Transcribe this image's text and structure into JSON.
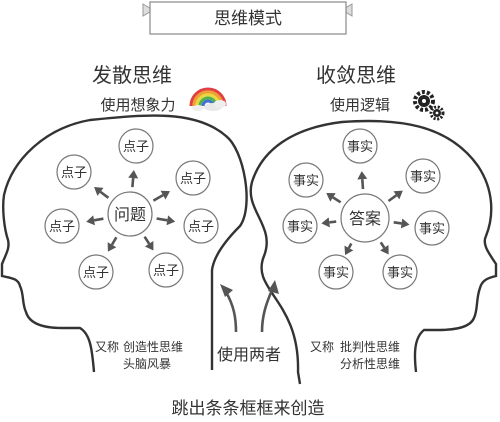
{
  "title": "思维模式",
  "footer": "跳出条条框框来创造",
  "center_label": "使用两者",
  "divergent": {
    "heading": "发散思维",
    "subheading": "使用想象力",
    "center": "问题",
    "nodes": [
      "点子",
      "点子",
      "点子",
      "点子",
      "点子",
      "点子",
      "点子"
    ],
    "alias_prefix": "又称",
    "alias_lines": [
      "创造性思维",
      "头脑风暴"
    ]
  },
  "convergent": {
    "heading": "收敛思维",
    "subheading": "使用逻辑",
    "center": "答案",
    "nodes": [
      "事实",
      "事实",
      "事实",
      "事实",
      "事实",
      "事实",
      "事实"
    ],
    "alias_prefix": "又称",
    "alias_lines": [
      "批判性思维",
      "分析性思维"
    ]
  },
  "icons": {
    "divergent": "rainbow-cloud-icon",
    "convergent": "gears-icon"
  }
}
